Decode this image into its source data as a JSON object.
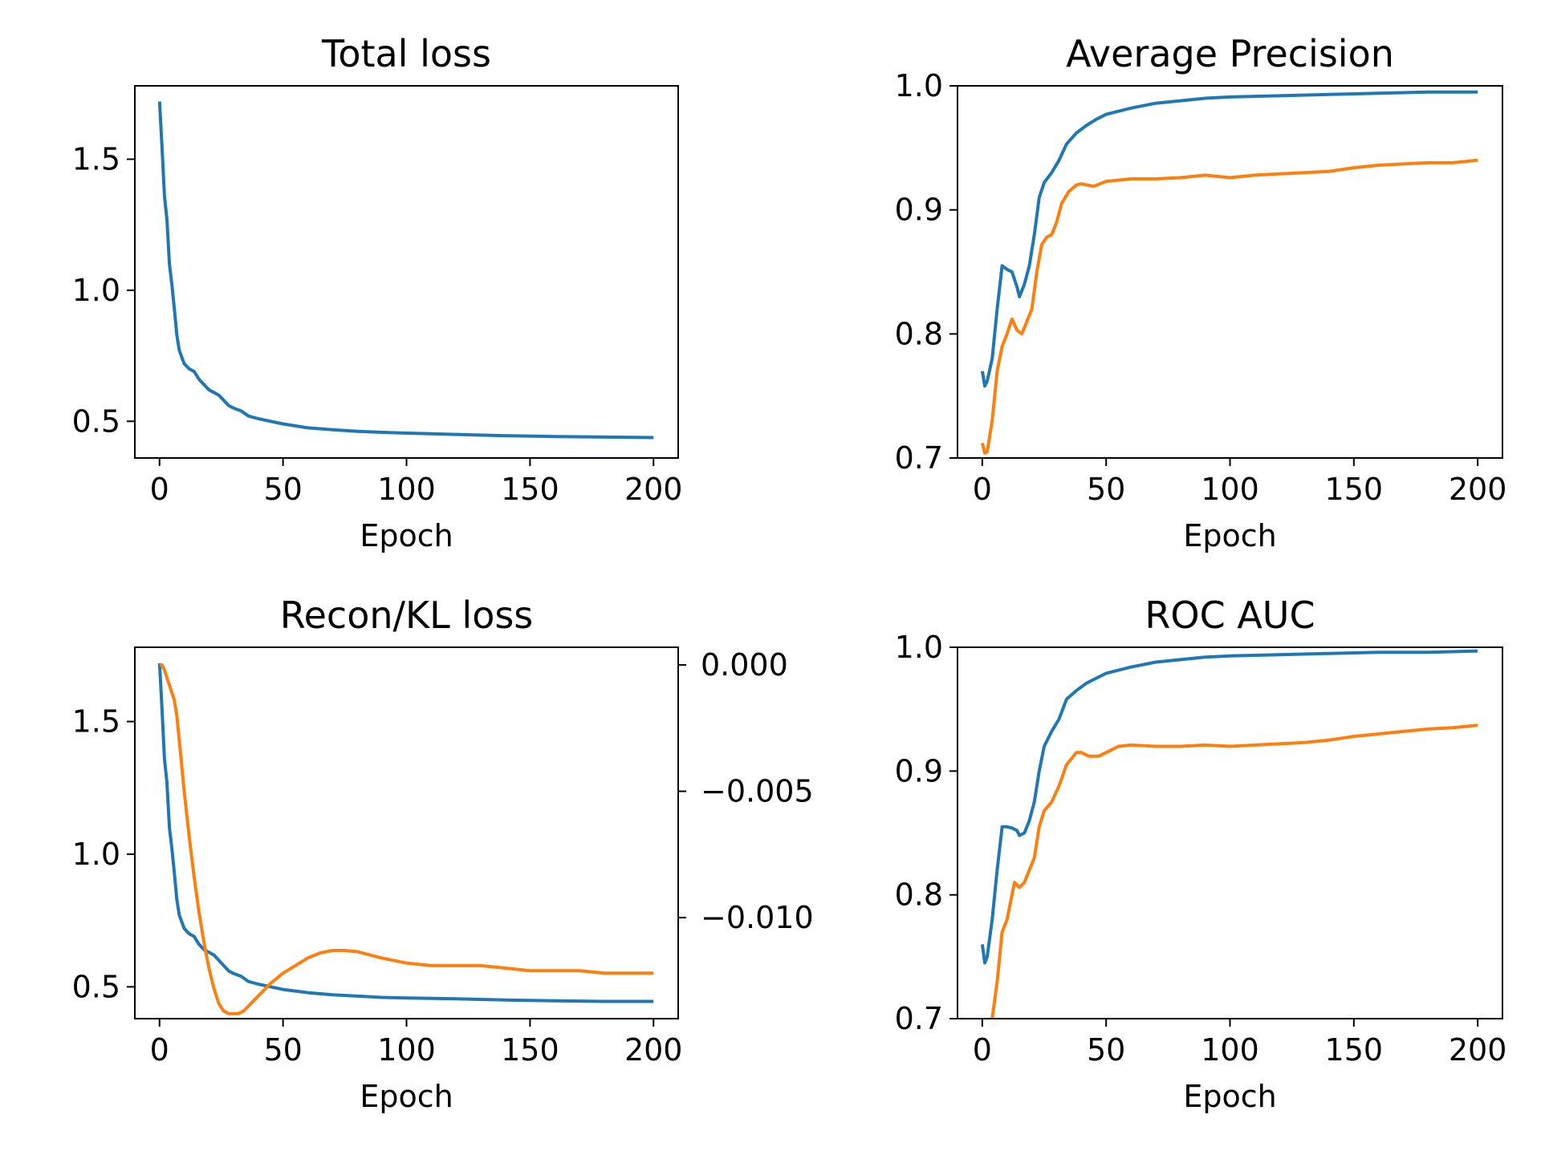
{
  "chart_data": [
    {
      "type": "line",
      "title": "Total loss",
      "xlabel": "Epoch",
      "xlim": [
        -10,
        210
      ],
      "ylim": [
        0.36,
        1.78
      ],
      "xticks": [
        0,
        50,
        100,
        150,
        200
      ],
      "yticks": [
        0.5,
        1.0,
        1.5
      ],
      "xtick_labels": [
        "0",
        "50",
        "100",
        "150",
        "200"
      ],
      "ytick_labels": [
        "0.5",
        "1.0",
        "1.5"
      ],
      "series": [
        {
          "color": "#1f77b4",
          "points": [
            [
              0,
              1.72
            ],
            [
              1,
              1.55
            ],
            [
              2,
              1.36
            ],
            [
              3,
              1.27
            ],
            [
              4,
              1.1
            ],
            [
              5,
              1.02
            ],
            [
              6,
              0.93
            ],
            [
              7,
              0.83
            ],
            [
              8,
              0.77
            ],
            [
              10,
              0.72
            ],
            [
              12,
              0.7
            ],
            [
              14,
              0.69
            ],
            [
              16,
              0.66
            ],
            [
              18,
              0.64
            ],
            [
              20,
              0.62
            ],
            [
              22,
              0.61
            ],
            [
              24,
              0.6
            ],
            [
              26,
              0.58
            ],
            [
              28,
              0.56
            ],
            [
              30,
              0.55
            ],
            [
              33,
              0.54
            ],
            [
              36,
              0.52
            ],
            [
              40,
              0.51
            ],
            [
              45,
              0.5
            ],
            [
              50,
              0.49
            ],
            [
              60,
              0.475
            ],
            [
              70,
              0.468
            ],
            [
              80,
              0.462
            ],
            [
              90,
              0.458
            ],
            [
              100,
              0.455
            ],
            [
              120,
              0.45
            ],
            [
              140,
              0.445
            ],
            [
              160,
              0.442
            ],
            [
              180,
              0.44
            ],
            [
              200,
              0.438
            ]
          ]
        }
      ]
    },
    {
      "type": "line",
      "title": "Average Precision",
      "xlabel": "Epoch",
      "xlim": [
        -10,
        210
      ],
      "ylim": [
        0.7,
        1.0
      ],
      "xticks": [
        0,
        50,
        100,
        150,
        200
      ],
      "yticks": [
        0.7,
        0.8,
        0.9,
        1.0
      ],
      "xtick_labels": [
        "0",
        "50",
        "100",
        "150",
        "200"
      ],
      "ytick_labels": [
        "0.7",
        "0.8",
        "0.9",
        "1.0"
      ],
      "series": [
        {
          "color": "#1f77b4",
          "points": [
            [
              0,
              0.77
            ],
            [
              1,
              0.758
            ],
            [
              2,
              0.762
            ],
            [
              4,
              0.78
            ],
            [
              6,
              0.82
            ],
            [
              8,
              0.855
            ],
            [
              10,
              0.852
            ],
            [
              12,
              0.85
            ],
            [
              14,
              0.838
            ],
            [
              15,
              0.83
            ],
            [
              17,
              0.84
            ],
            [
              19,
              0.855
            ],
            [
              21,
              0.88
            ],
            [
              23,
              0.91
            ],
            [
              25,
              0.922
            ],
            [
              28,
              0.93
            ],
            [
              31,
              0.94
            ],
            [
              34,
              0.953
            ],
            [
              38,
              0.962
            ],
            [
              42,
              0.968
            ],
            [
              46,
              0.973
            ],
            [
              50,
              0.977
            ],
            [
              60,
              0.982
            ],
            [
              70,
              0.986
            ],
            [
              80,
              0.988
            ],
            [
              90,
              0.99
            ],
            [
              100,
              0.991
            ],
            [
              120,
              0.992
            ],
            [
              140,
              0.993
            ],
            [
              160,
              0.994
            ],
            [
              180,
              0.995
            ],
            [
              200,
              0.995
            ]
          ]
        },
        {
          "color": "#ff7f0e",
          "points": [
            [
              0,
              0.712
            ],
            [
              1,
              0.704
            ],
            [
              2,
              0.705
            ],
            [
              4,
              0.73
            ],
            [
              6,
              0.77
            ],
            [
              8,
              0.79
            ],
            [
              10,
              0.8
            ],
            [
              12,
              0.812
            ],
            [
              14,
              0.803
            ],
            [
              16,
              0.8
            ],
            [
              18,
              0.81
            ],
            [
              20,
              0.82
            ],
            [
              22,
              0.85
            ],
            [
              24,
              0.872
            ],
            [
              26,
              0.878
            ],
            [
              28,
              0.88
            ],
            [
              30,
              0.89
            ],
            [
              32,
              0.905
            ],
            [
              35,
              0.915
            ],
            [
              38,
              0.92
            ],
            [
              40,
              0.921
            ],
            [
              45,
              0.919
            ],
            [
              50,
              0.923
            ],
            [
              60,
              0.925
            ],
            [
              70,
              0.925
            ],
            [
              80,
              0.926
            ],
            [
              90,
              0.928
            ],
            [
              100,
              0.926
            ],
            [
              110,
              0.928
            ],
            [
              120,
              0.929
            ],
            [
              130,
              0.93
            ],
            [
              140,
              0.931
            ],
            [
              150,
              0.934
            ],
            [
              160,
              0.936
            ],
            [
              170,
              0.937
            ],
            [
              180,
              0.938
            ],
            [
              190,
              0.938
            ],
            [
              200,
              0.94
            ]
          ]
        }
      ]
    },
    {
      "type": "line",
      "title": "Recon/KL loss",
      "xlabel": "Epoch",
      "xlim": [
        -10,
        210
      ],
      "ylim": [
        0.38,
        1.78
      ],
      "y2lim": [
        -0.014,
        0.0007
      ],
      "xticks": [
        0,
        50,
        100,
        150,
        200
      ],
      "yticks": [
        0.5,
        1.0,
        1.5
      ],
      "y2ticks": [
        0.0,
        -0.005,
        -0.01
      ],
      "xtick_labels": [
        "0",
        "50",
        "100",
        "150",
        "200"
      ],
      "ytick_labels": [
        "0.5",
        "1.0",
        "1.5"
      ],
      "y2tick_labels": [
        "0.000",
        "−0.005",
        "−0.010"
      ],
      "series": [
        {
          "color": "#1f77b4",
          "axis": "left",
          "points": [
            [
              0,
              1.72
            ],
            [
              1,
              1.55
            ],
            [
              2,
              1.36
            ],
            [
              3,
              1.27
            ],
            [
              4,
              1.1
            ],
            [
              5,
              1.02
            ],
            [
              6,
              0.93
            ],
            [
              7,
              0.83
            ],
            [
              8,
              0.77
            ],
            [
              10,
              0.72
            ],
            [
              12,
              0.7
            ],
            [
              14,
              0.69
            ],
            [
              16,
              0.66
            ],
            [
              18,
              0.64
            ],
            [
              20,
              0.63
            ],
            [
              22,
              0.62
            ],
            [
              24,
              0.6
            ],
            [
              26,
              0.58
            ],
            [
              28,
              0.56
            ],
            [
              30,
              0.55
            ],
            [
              33,
              0.54
            ],
            [
              36,
              0.52
            ],
            [
              40,
              0.51
            ],
            [
              45,
              0.5
            ],
            [
              50,
              0.49
            ],
            [
              60,
              0.478
            ],
            [
              70,
              0.47
            ],
            [
              80,
              0.465
            ],
            [
              90,
              0.46
            ],
            [
              100,
              0.458
            ],
            [
              120,
              0.455
            ],
            [
              140,
              0.45
            ],
            [
              160,
              0.447
            ],
            [
              180,
              0.445
            ],
            [
              200,
              0.445
            ]
          ]
        },
        {
          "color": "#ff7f0e",
          "axis": "right",
          "points": [
            [
              0,
              0.0
            ],
            [
              1,
              0.0
            ],
            [
              2,
              -0.0002
            ],
            [
              4,
              -0.0008
            ],
            [
              6,
              -0.0014
            ],
            [
              7,
              -0.002
            ],
            [
              8,
              -0.003
            ],
            [
              10,
              -0.005
            ],
            [
              12,
              -0.0068
            ],
            [
              14,
              -0.0084
            ],
            [
              16,
              -0.0098
            ],
            [
              18,
              -0.011
            ],
            [
              20,
              -0.012
            ],
            [
              22,
              -0.0128
            ],
            [
              24,
              -0.0134
            ],
            [
              26,
              -0.0137
            ],
            [
              28,
              -0.0138
            ],
            [
              30,
              -0.0138
            ],
            [
              32,
              -0.0138
            ],
            [
              34,
              -0.0137
            ],
            [
              36,
              -0.0135
            ],
            [
              40,
              -0.0131
            ],
            [
              45,
              -0.0126
            ],
            [
              50,
              -0.0122
            ],
            [
              55,
              -0.0119
            ],
            [
              60,
              -0.0116
            ],
            [
              65,
              -0.0114
            ],
            [
              70,
              -0.0113
            ],
            [
              75,
              -0.0113
            ],
            [
              80,
              -0.01135
            ],
            [
              90,
              -0.0116
            ],
            [
              100,
              -0.0118
            ],
            [
              110,
              -0.0119
            ],
            [
              120,
              -0.0119
            ],
            [
              130,
              -0.0119
            ],
            [
              140,
              -0.012
            ],
            [
              150,
              -0.0121
            ],
            [
              160,
              -0.0121
            ],
            [
              170,
              -0.0121
            ],
            [
              180,
              -0.0122
            ],
            [
              190,
              -0.0122
            ],
            [
              200,
              -0.0122
            ]
          ]
        }
      ]
    },
    {
      "type": "line",
      "title": "ROC AUC",
      "xlabel": "Epoch",
      "xlim": [
        -10,
        210
      ],
      "ylim": [
        0.7,
        1.0
      ],
      "xticks": [
        0,
        50,
        100,
        150,
        200
      ],
      "yticks": [
        0.7,
        0.8,
        0.9,
        1.0
      ],
      "xtick_labels": [
        "0",
        "50",
        "100",
        "150",
        "200"
      ],
      "ytick_labels": [
        "0.7",
        "0.8",
        "0.9",
        "1.0"
      ],
      "series": [
        {
          "color": "#1f77b4",
          "points": [
            [
              0,
              0.76
            ],
            [
              1,
              0.745
            ],
            [
              2,
              0.75
            ],
            [
              4,
              0.78
            ],
            [
              6,
              0.82
            ],
            [
              8,
              0.855
            ],
            [
              10,
              0.855
            ],
            [
              12,
              0.854
            ],
            [
              14,
              0.852
            ],
            [
              15,
              0.848
            ],
            [
              17,
              0.85
            ],
            [
              19,
              0.86
            ],
            [
              21,
              0.875
            ],
            [
              23,
              0.9
            ],
            [
              25,
              0.92
            ],
            [
              28,
              0.932
            ],
            [
              31,
              0.942
            ],
            [
              34,
              0.958
            ],
            [
              38,
              0.965
            ],
            [
              42,
              0.971
            ],
            [
              46,
              0.975
            ],
            [
              50,
              0.979
            ],
            [
              60,
              0.984
            ],
            [
              70,
              0.988
            ],
            [
              80,
              0.99
            ],
            [
              90,
              0.992
            ],
            [
              100,
              0.993
            ],
            [
              120,
              0.994
            ],
            [
              140,
              0.995
            ],
            [
              160,
              0.996
            ],
            [
              180,
              0.996
            ],
            [
              200,
              0.997
            ]
          ]
        },
        {
          "color": "#ff7f0e",
          "points": [
            [
              4,
              0.7
            ],
            [
              6,
              0.73
            ],
            [
              8,
              0.77
            ],
            [
              10,
              0.78
            ],
            [
              12,
              0.8
            ],
            [
              13,
              0.81
            ],
            [
              15,
              0.806
            ],
            [
              17,
              0.81
            ],
            [
              19,
              0.82
            ],
            [
              21,
              0.83
            ],
            [
              23,
              0.855
            ],
            [
              25,
              0.868
            ],
            [
              28,
              0.875
            ],
            [
              31,
              0.888
            ],
            [
              34,
              0.905
            ],
            [
              38,
              0.915
            ],
            [
              40,
              0.915
            ],
            [
              43,
              0.912
            ],
            [
              47,
              0.912
            ],
            [
              50,
              0.915
            ],
            [
              55,
              0.92
            ],
            [
              60,
              0.921
            ],
            [
              70,
              0.92
            ],
            [
              80,
              0.92
            ],
            [
              90,
              0.921
            ],
            [
              100,
              0.92
            ],
            [
              110,
              0.921
            ],
            [
              120,
              0.922
            ],
            [
              130,
              0.923
            ],
            [
              140,
              0.925
            ],
            [
              150,
              0.928
            ],
            [
              160,
              0.93
            ],
            [
              170,
              0.932
            ],
            [
              180,
              0.934
            ],
            [
              190,
              0.935
            ],
            [
              200,
              0.937
            ]
          ]
        }
      ]
    }
  ]
}
